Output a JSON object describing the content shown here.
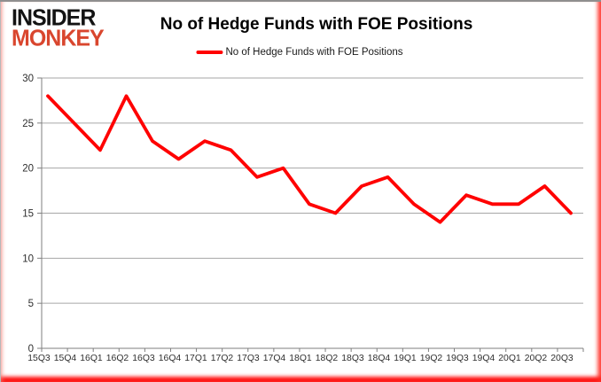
{
  "header": {
    "logo_line1": "INSIDER",
    "logo_line2": "MONKEY",
    "logo_accent_color": "#d9462e",
    "title": "No of Hedge Funds with FOE Positions",
    "legend_label": "No of Hedge Funds with FOE Positions"
  },
  "chart_data": {
    "type": "line",
    "title": "No of Hedge Funds with FOE Positions",
    "legend_entries": [
      "No of Hedge Funds with FOE Positions"
    ],
    "legend_position": "top",
    "categories": [
      "15Q3",
      "15Q4",
      "16Q1",
      "16Q2",
      "16Q3",
      "16Q4",
      "17Q1",
      "17Q2",
      "17Q3",
      "17Q4",
      "18Q1",
      "18Q2",
      "18Q3",
      "18Q4",
      "19Q1",
      "19Q2",
      "19Q3",
      "19Q4",
      "20Q1",
      "20Q2",
      "20Q3"
    ],
    "series": [
      {
        "name": "No of Hedge Funds with FOE Positions",
        "values": [
          28,
          25,
          22,
          28,
          23,
          21,
          23,
          22,
          19,
          20,
          16,
          15,
          18,
          19,
          16,
          14,
          17,
          16,
          16,
          18,
          15
        ]
      }
    ],
    "xlabel": "",
    "ylabel": "",
    "ylim": [
      0,
      30
    ],
    "yticks": [
      0,
      5,
      10,
      15,
      20,
      25,
      30
    ],
    "grid": "horizontal",
    "line_color": "#FF0000",
    "grid_color": "#A6A6A6",
    "axis_color": "#7F7F7F",
    "tick_label_color": "#2e2e2e"
  }
}
